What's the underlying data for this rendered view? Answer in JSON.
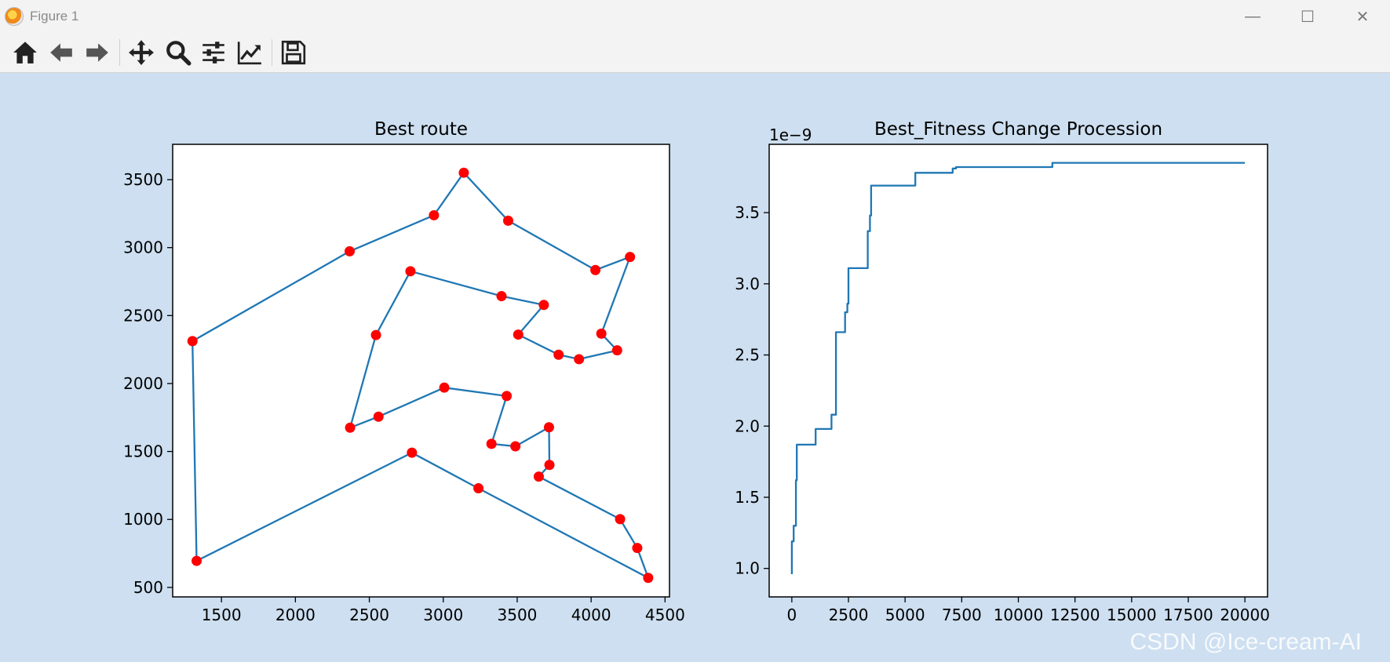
{
  "window": {
    "title": "Figure 1",
    "controls": [
      {
        "name": "minimize",
        "glyph": "—"
      },
      {
        "name": "maximize",
        "glyph": "☐"
      },
      {
        "name": "close",
        "glyph": "✕"
      }
    ]
  },
  "toolbar": {
    "buttons": [
      "home-icon",
      "back-arrow-icon",
      "forward-arrow-icon",
      "pan-move-icon",
      "zoom-magnifier-icon",
      "subplots-config-icon",
      "edit-axis-lines-icon",
      "save-disk-icon"
    ]
  },
  "colors": {
    "background": "#cddff0",
    "line": "#1f77b4",
    "marker": "#ff0000"
  },
  "watermark": "CSDN @Ice-cream-AI",
  "chart_data": [
    {
      "type": "line",
      "title": "Best route",
      "xlim": [
        1170,
        4530
      ],
      "ylim": [
        430,
        3760
      ],
      "xticks": [
        1500,
        2000,
        2500,
        3000,
        3500,
        4000,
        4500
      ],
      "yticks": [
        500,
        1000,
        1500,
        2000,
        2500,
        3000,
        3500
      ],
      "markers": "red circles at every city",
      "x": [
        1304,
        2367,
        2937,
        3139,
        3439,
        4029,
        4263,
        4069,
        4176,
        3918,
        3780,
        3507,
        3680,
        3394,
        2778,
        2545,
        2370,
        2562,
        3007,
        3429,
        3326,
        3488,
        3715,
        3718,
        3646,
        4196,
        4312,
        4386,
        3238,
        2788,
        1332,
        1304
      ],
      "y": [
        2312,
        2973,
        3238,
        3551,
        3198,
        2835,
        2931,
        2367,
        2244,
        2179,
        2212,
        2360,
        2578,
        2643,
        2826,
        2357,
        1675,
        1756,
        1970,
        1908,
        1556,
        1538,
        1678,
        1401,
        1315,
        1002,
        790,
        570,
        1229,
        1491,
        695,
        2312
      ]
    },
    {
      "type": "line",
      "title": "Best_Fitness Change Procession",
      "offset_label": "1e−9",
      "xlim": [
        -1000,
        21000
      ],
      "ylim": [
        0.8,
        3.98
      ],
      "xticks": [
        0,
        2500,
        5000,
        7500,
        10000,
        12500,
        15000,
        17500,
        20000
      ],
      "yticks": [
        1.0,
        1.5,
        2.0,
        2.5,
        3.0,
        3.5
      ],
      "ytick_labels": [
        "1.0",
        "1.5",
        "2.0",
        "2.5",
        "3.0",
        "3.5"
      ],
      "x": [
        0,
        0,
        80,
        80,
        180,
        180,
        220,
        220,
        300,
        300,
        1050,
        1050,
        1750,
        1750,
        1950,
        1950,
        2350,
        2350,
        2450,
        2450,
        2500,
        2500,
        3350,
        3350,
        3450,
        3450,
        3500,
        3500,
        5450,
        5450,
        7100,
        7100,
        7250,
        7250,
        11500,
        11500,
        20000
      ],
      "y": [
        0.96,
        1.19,
        1.19,
        1.3,
        1.3,
        1.62,
        1.62,
        1.87,
        1.87,
        1.87,
        1.87,
        1.98,
        1.98,
        2.08,
        2.08,
        2.66,
        2.66,
        2.8,
        2.8,
        2.86,
        2.86,
        3.11,
        3.11,
        3.37,
        3.37,
        3.48,
        3.48,
        3.69,
        3.69,
        3.78,
        3.78,
        3.81,
        3.81,
        3.82,
        3.82,
        3.85,
        3.85
      ]
    }
  ]
}
